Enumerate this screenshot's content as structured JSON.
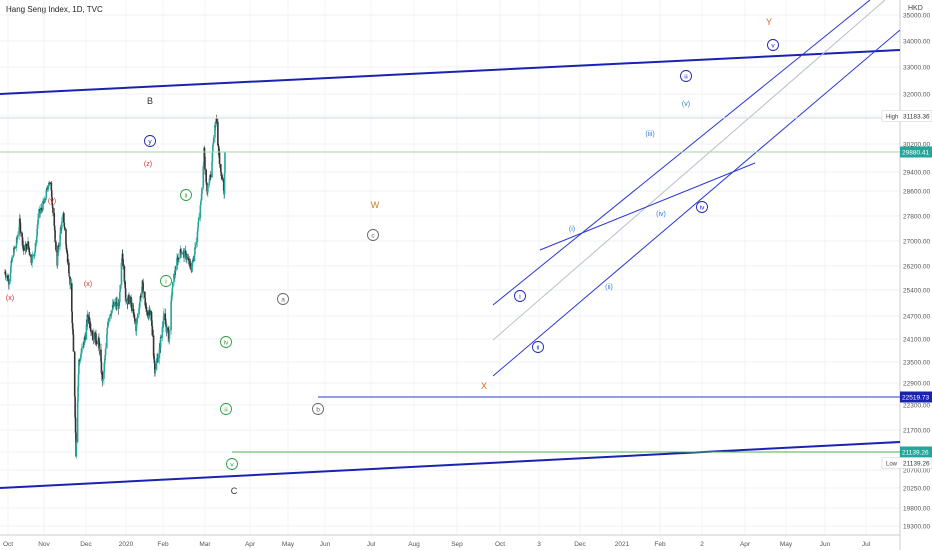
{
  "chart_title": "Hang Seng Index, 1D, TVC",
  "currency": "HKD",
  "chart_data": {
    "type": "candlestick",
    "title": "Hang Seng Index, 1D, TVC",
    "x_labels": [
      "Oct",
      "Nov",
      "Dec",
      "2020",
      "Feb",
      "Mar",
      "Apr",
      "May",
      "Jun",
      "Jul",
      "Aug",
      "Sep",
      "Oct",
      "3",
      "Dec",
      "2021",
      "Feb",
      "2",
      "Apr",
      "May",
      "Jun",
      "Jul"
    ],
    "y_ticks": [
      "35000.00",
      "34000.00",
      "33000.00",
      "32000.00",
      "31183.36",
      "30200.00",
      "29800.00",
      "29400.00",
      "28600.00",
      "27800.00",
      "27000.00",
      "26200.00",
      "25400.00",
      "24700.00",
      "24100.00",
      "23500.00",
      "22900.00",
      "22300.00",
      "21700.00",
      "21139.26",
      "20700.00",
      "20250.00",
      "19800.00",
      "19300.00"
    ],
    "y_range": [
      19000,
      35500
    ],
    "axis_badges": [
      {
        "label": "High",
        "value": "31183.36",
        "kind": "plain"
      },
      {
        "label": "",
        "value": "29880.41",
        "kind": "green"
      },
      {
        "label": "",
        "value": "22519.73",
        "kind": "blue"
      },
      {
        "label": "",
        "value": "21139.26",
        "kind": "green"
      },
      {
        "label": "Low",
        "value": "21139.26",
        "kind": "plain"
      }
    ],
    "price_path": [
      [
        "2019-10-01",
        26000
      ],
      [
        "2019-10-10",
        25700
      ],
      [
        "2019-10-20",
        26600
      ],
      [
        "2019-10-28",
        26900
      ],
      [
        "2019-11-05",
        27600
      ],
      [
        "2019-11-15",
        26700
      ],
      [
        "2019-11-25",
        26900
      ],
      [
        "2019-12-03",
        26400
      ],
      [
        "2019-12-12",
        26700
      ],
      [
        "2019-12-20",
        27800
      ],
      [
        "2020-01-05",
        28300
      ],
      [
        "2020-01-14",
        29000
      ],
      [
        "2020-01-20",
        28700
      ],
      [
        "2020-01-25",
        27700
      ],
      [
        "2020-02-03",
        26300
      ],
      [
        "2020-02-10",
        27300
      ],
      [
        "2020-02-18",
        27800
      ],
      [
        "2020-02-24",
        26900
      ],
      [
        "2020-03-02",
        26100
      ],
      [
        "2020-03-06",
        25500
      ],
      [
        "2020-03-12",
        24100
      ],
      [
        "2020-03-16",
        22600
      ],
      [
        "2020-03-19",
        21139
      ],
      [
        "2020-03-26",
        23500
      ],
      [
        "2020-04-07",
        24000
      ],
      [
        "2020-04-17",
        24700
      ],
      [
        "2020-04-29",
        24200
      ],
      [
        "2020-05-13",
        24000
      ],
      [
        "2020-05-22",
        22900
      ],
      [
        "2020-05-26",
        23400
      ],
      [
        "2020-06-05",
        24700
      ],
      [
        "2020-06-19",
        25000
      ],
      [
        "2020-07-01",
        25000
      ],
      [
        "2020-07-08",
        26700
      ],
      [
        "2020-07-16",
        25200
      ],
      [
        "2020-07-28",
        25100
      ],
      [
        "2020-08-10",
        24400
      ],
      [
        "2020-08-25",
        25600
      ],
      [
        "2020-09-04",
        24800
      ],
      [
        "2020-09-15",
        24700
      ],
      [
        "2020-09-24",
        23300
      ],
      [
        "2020-10-05",
        23800
      ],
      [
        "2020-10-15",
        24700
      ],
      [
        "2020-10-28",
        24100
      ],
      [
        "2020-11-05",
        25500
      ],
      [
        "2020-11-15",
        26300
      ],
      [
        "2020-11-26",
        26700
      ],
      [
        "2020-12-08",
        26500
      ],
      [
        "2020-12-21",
        26100
      ],
      [
        "2021-01-04",
        27300
      ],
      [
        "2021-01-12",
        28200
      ],
      [
        "2021-01-20",
        29900
      ],
      [
        "2021-01-27",
        28600
      ],
      [
        "2021-02-05",
        29300
      ],
      [
        "2021-02-18",
        31183
      ],
      [
        "2021-02-24",
        29800
      ],
      [
        "2021-03-04",
        29200
      ],
      [
        "2021-03-09",
        28600
      ],
      [
        "2021-03-11",
        29880
      ]
    ],
    "wave_labels": [
      {
        "text": "(x)",
        "color": "#d32f2f",
        "style": "plain"
      },
      {
        "text": "(y)",
        "color": "#d32f2f",
        "style": "plain"
      },
      {
        "text": "(x)",
        "color": "#d32f2f",
        "style": "plain"
      },
      {
        "text": "(z)",
        "color": "#d32f2f",
        "style": "plain"
      },
      {
        "text": "y",
        "color": "#1a23b0",
        "style": "circle"
      },
      {
        "text": "B",
        "color": "#333333",
        "style": "plain"
      },
      {
        "text": "ii",
        "color": "#2e9e3e",
        "style": "circle"
      },
      {
        "text": "i",
        "color": "#2e9e3e",
        "style": "circle"
      },
      {
        "text": "iv",
        "color": "#2e9e3e",
        "style": "circle"
      },
      {
        "text": "iii",
        "color": "#2e9e3e",
        "style": "circle"
      },
      {
        "text": "v",
        "color": "#2e9e3e",
        "style": "circle"
      },
      {
        "text": "C",
        "color": "#333333",
        "style": "plain"
      },
      {
        "text": "a",
        "color": "#666666",
        "style": "circle"
      },
      {
        "text": "b",
        "color": "#666666",
        "style": "circle"
      },
      {
        "text": "c",
        "color": "#666666",
        "style": "circle"
      },
      {
        "text": "W",
        "color": "#c7811f",
        "style": "plain"
      },
      {
        "text": "X",
        "color": "#e0651e",
        "style": "plain"
      },
      {
        "text": "i",
        "color": "#1a23b0",
        "style": "circle"
      },
      {
        "text": "ii",
        "color": "#1a23b0",
        "style": "circle"
      },
      {
        "text": "(i)",
        "color": "#2f7fd6",
        "style": "plain"
      },
      {
        "text": "(ii)",
        "color": "#2f7fd6",
        "style": "plain"
      },
      {
        "text": "(iii)",
        "color": "#2f7fd6",
        "style": "plain"
      },
      {
        "text": "(iv)",
        "color": "#2f7fd6",
        "style": "plain"
      },
      {
        "text": "(v)",
        "color": "#2f7fd6",
        "style": "plain"
      },
      {
        "text": "iii",
        "color": "#1a23b0",
        "style": "circle"
      },
      {
        "text": "iv",
        "color": "#1a23b0",
        "style": "circle"
      },
      {
        "text": "v",
        "color": "#1a23b0",
        "style": "circle"
      },
      {
        "text": "Y",
        "color": "#e0651e",
        "style": "plain"
      }
    ]
  }
}
